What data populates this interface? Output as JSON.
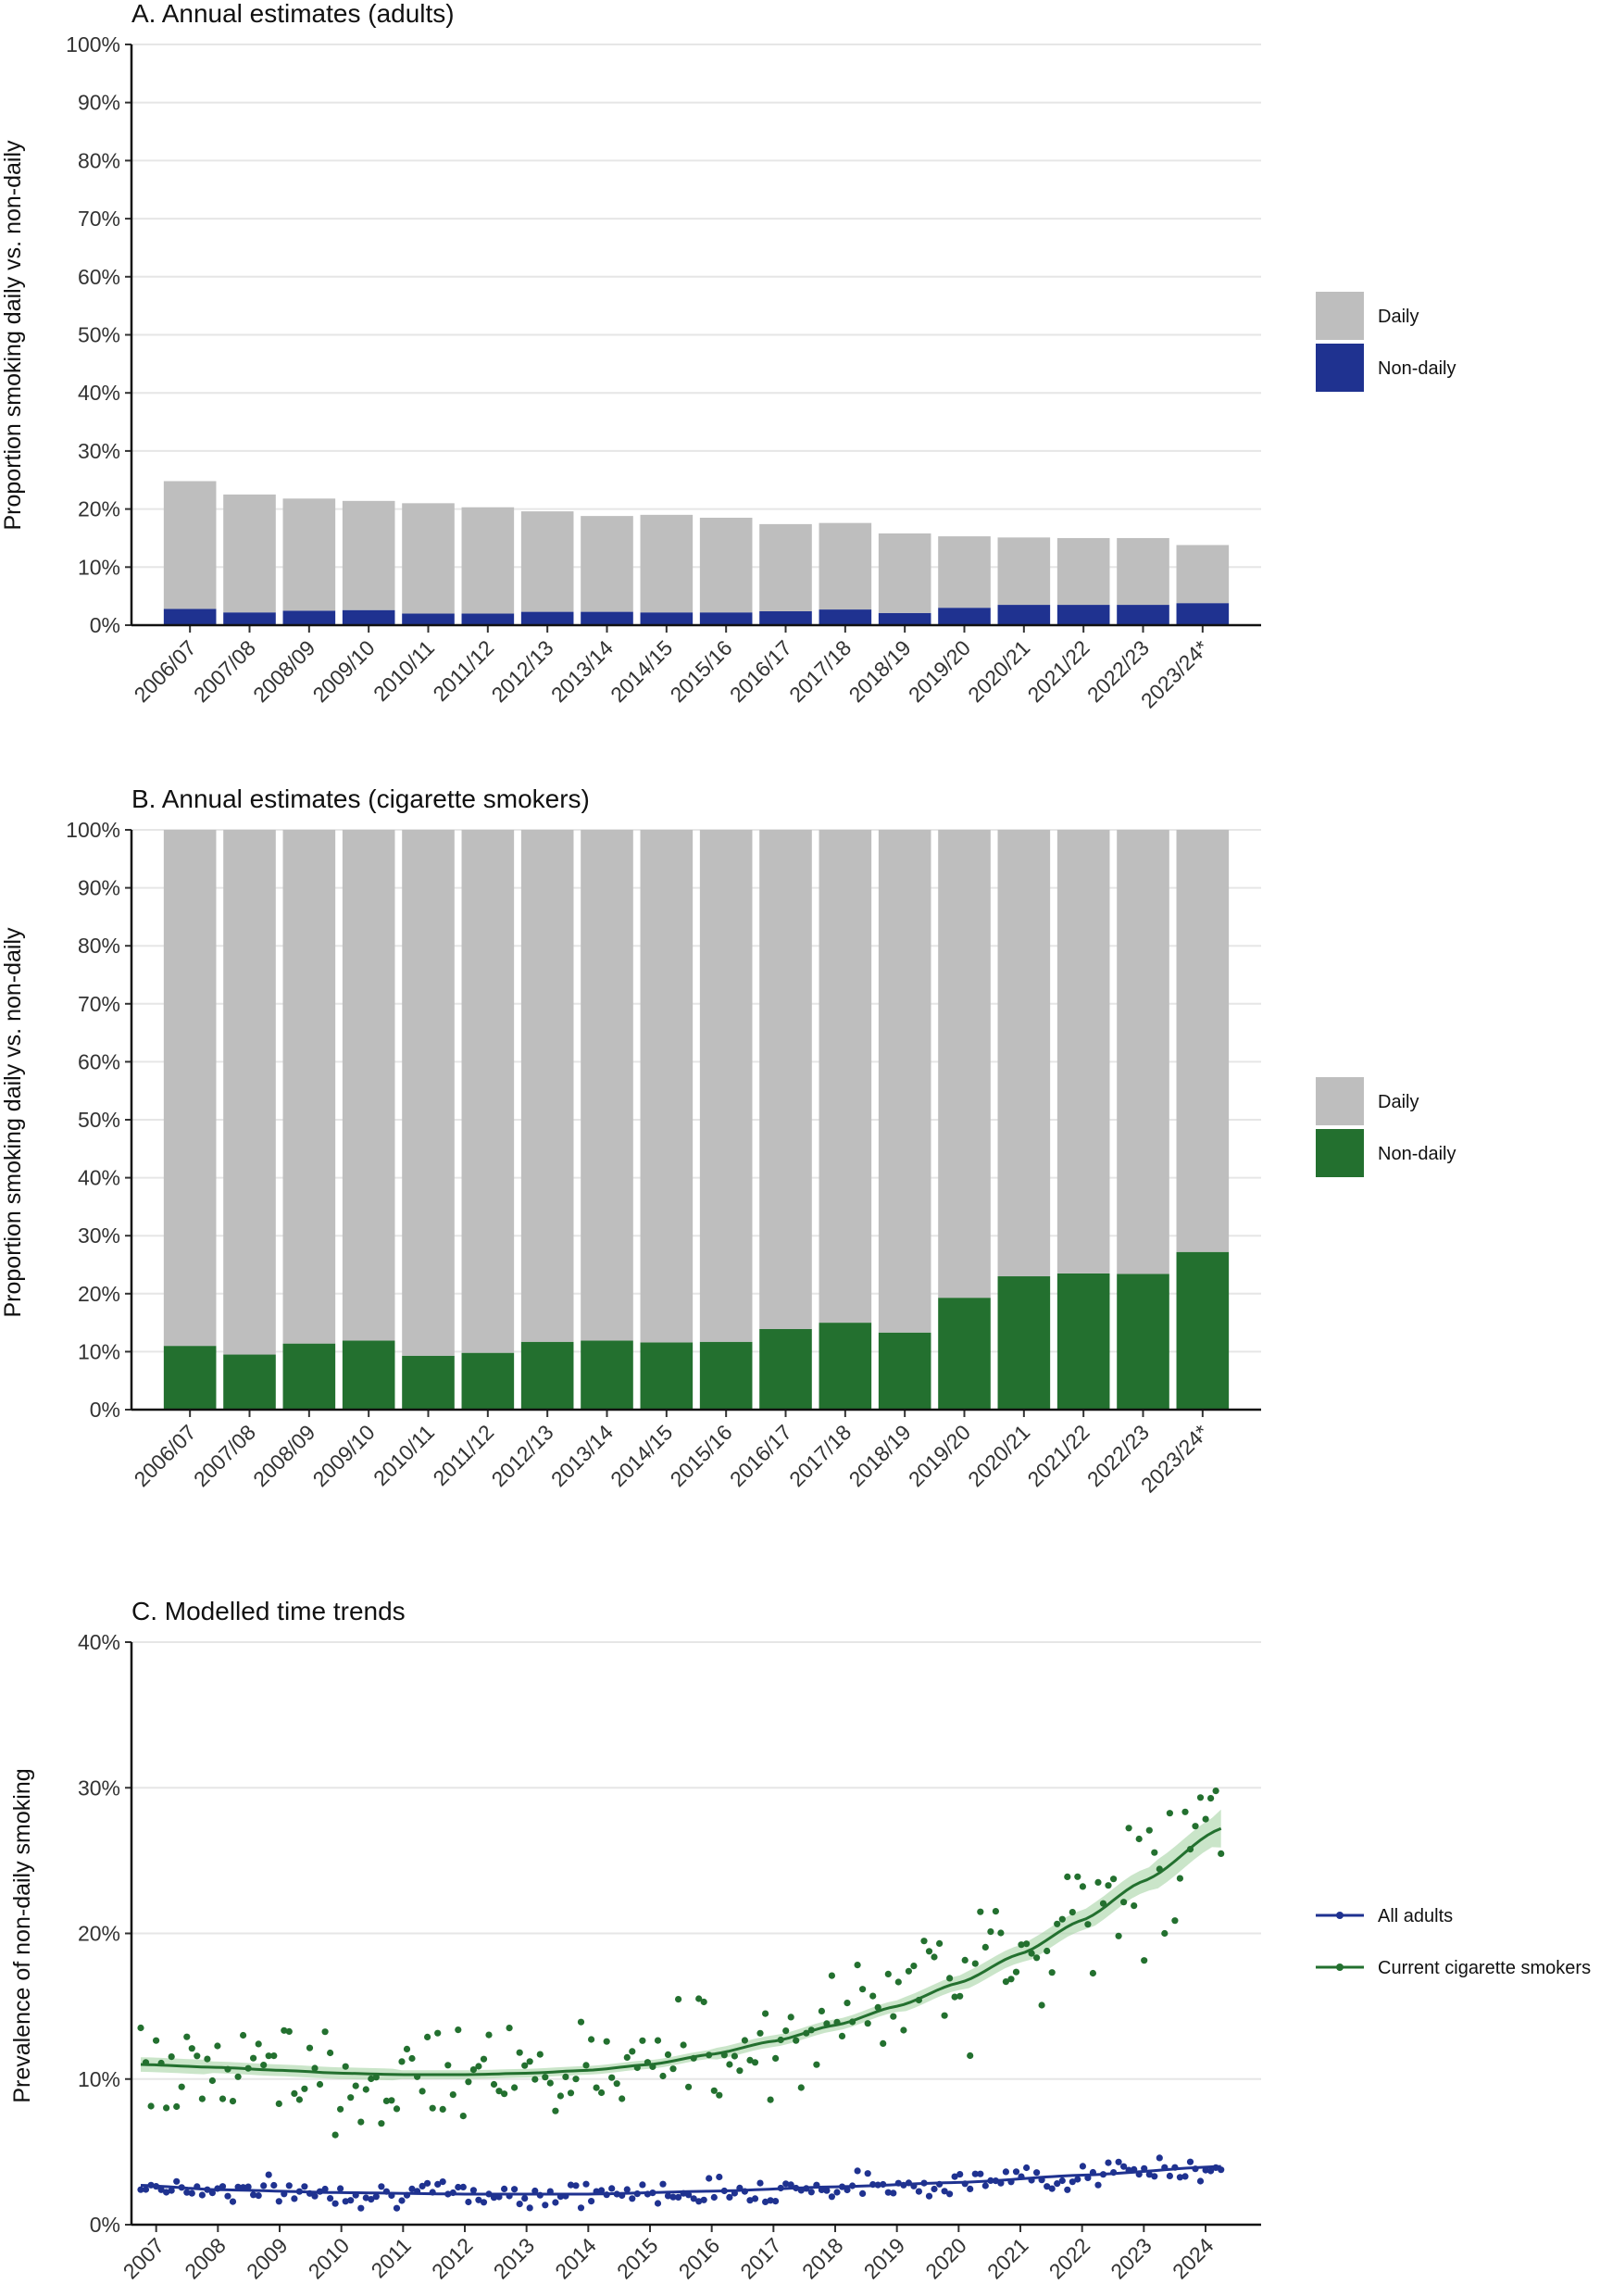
{
  "chart_data": [
    {
      "type": "bar",
      "stacked": true,
      "title": "A. Annual estimates (adults)",
      "ylabel": "Proportion smoking daily vs. non-daily",
      "xlabel": "",
      "ylim": [
        0,
        100
      ],
      "yticks": [
        "0%",
        "10%",
        "20%",
        "30%",
        "40%",
        "50%",
        "60%",
        "70%",
        "80%",
        "90%",
        "100%"
      ],
      "categories": [
        "2006/07",
        "2007/08",
        "2008/09",
        "2009/10",
        "2010/11",
        "2011/12",
        "2012/13",
        "2013/14",
        "2014/15",
        "2015/16",
        "2016/17",
        "2017/18",
        "2018/19",
        "2019/20",
        "2020/21",
        "2021/22",
        "2022/23",
        "2023/24*"
      ],
      "series": [
        {
          "name": "Non-daily",
          "color": "#1f3290",
          "values": [
            2.8,
            2.2,
            2.5,
            2.6,
            2.0,
            2.0,
            2.3,
            2.3,
            2.2,
            2.2,
            2.4,
            2.7,
            2.1,
            3.0,
            3.5,
            3.5,
            3.5,
            3.8
          ]
        },
        {
          "name": "Daily",
          "color": "#bebebe",
          "values": [
            22.0,
            20.3,
            19.3,
            18.8,
            19.0,
            18.3,
            17.3,
            16.5,
            16.8,
            16.3,
            15.0,
            14.9,
            13.7,
            12.3,
            11.6,
            11.5,
            11.5,
            10.0
          ]
        }
      ],
      "legend": [
        "Daily",
        "Non-daily"
      ],
      "legend_position": "right"
    },
    {
      "type": "bar",
      "stacked": true,
      "title": "B. Annual estimates (cigarette smokers)",
      "ylabel": "Proportion smoking daily vs. non-daily",
      "xlabel": "",
      "ylim": [
        0,
        100
      ],
      "yticks": [
        "0%",
        "10%",
        "20%",
        "30%",
        "40%",
        "50%",
        "60%",
        "70%",
        "80%",
        "90%",
        "100%"
      ],
      "categories": [
        "2006/07",
        "2007/08",
        "2008/09",
        "2009/10",
        "2010/11",
        "2011/12",
        "2012/13",
        "2013/14",
        "2014/15",
        "2015/16",
        "2016/17",
        "2017/18",
        "2018/19",
        "2019/20",
        "2020/21",
        "2021/22",
        "2022/23",
        "2023/24*"
      ],
      "series": [
        {
          "name": "Non-daily",
          "color": "#23702f",
          "values": [
            11.0,
            9.5,
            11.4,
            11.9,
            9.3,
            9.8,
            11.7,
            11.9,
            11.6,
            11.7,
            13.9,
            15.0,
            13.3,
            19.3,
            23.0,
            23.5,
            23.4,
            27.2
          ]
        },
        {
          "name": "Daily",
          "color": "#bebebe",
          "values": [
            89.0,
            90.5,
            88.6,
            88.1,
            90.7,
            90.2,
            88.3,
            88.1,
            88.4,
            88.3,
            86.1,
            85.0,
            86.7,
            80.7,
            77.0,
            76.5,
            76.6,
            72.8
          ]
        }
      ],
      "legend": [
        "Daily",
        "Non-daily"
      ],
      "legend_position": "right"
    },
    {
      "type": "scatter",
      "title": "C. Modelled time trends",
      "ylabel": "Prevalence of non-daily smoking",
      "xlabel": "",
      "ylim": [
        0,
        40
      ],
      "xlim": [
        2006.6,
        2024.9
      ],
      "yticks": [
        "0%",
        "10%",
        "20%",
        "30%",
        "40%"
      ],
      "xticks": [
        "2007",
        "2008",
        "2009",
        "2010",
        "2011",
        "2012",
        "2013",
        "2014",
        "2015",
        "2016",
        "2017",
        "2018",
        "2019",
        "2020",
        "2021",
        "2022",
        "2023",
        "2024"
      ],
      "series": [
        {
          "name": "All adults",
          "color": "#1f3290",
          "trend": [
            [
              2006.75,
              2.7
            ],
            [
              2008,
              2.4
            ],
            [
              2010,
              2.2
            ],
            [
              2012,
              2.1
            ],
            [
              2014,
              2.1
            ],
            [
              2016,
              2.3
            ],
            [
              2018,
              2.6
            ],
            [
              2020,
              2.9
            ],
            [
              2022,
              3.4
            ],
            [
              2024.25,
              4.0
            ]
          ],
          "seed": 7
        },
        {
          "name": "Current cigarette smokers",
          "color": "#23702f",
          "trend": [
            [
              2006.75,
              11.0
            ],
            [
              2008,
              10.8
            ],
            [
              2009,
              10.6
            ],
            [
              2010,
              10.4
            ],
            [
              2011,
              10.3
            ],
            [
              2012,
              10.3
            ],
            [
              2013,
              10.4
            ],
            [
              2014,
              10.6
            ],
            [
              2015,
              11.0
            ],
            [
              2016,
              11.7
            ],
            [
              2017,
              12.6
            ],
            [
              2018,
              13.7
            ],
            [
              2019,
              15.0
            ],
            [
              2020,
              16.6
            ],
            [
              2021,
              18.6
            ],
            [
              2022,
              20.9
            ],
            [
              2023,
              23.6
            ],
            [
              2024.25,
              27.2
            ]
          ],
          "band_halfwidth": [
            0.5,
            0.4,
            0.4,
            0.4,
            0.3,
            0.3,
            0.3,
            0.3,
            0.3,
            0.4,
            0.4,
            0.4,
            0.5,
            0.6,
            0.7,
            0.8,
            1.0,
            1.3
          ],
          "seed": 13
        }
      ],
      "legend": [
        "All adults",
        "Current cigarette smokers"
      ],
      "legend_position": "right"
    }
  ]
}
